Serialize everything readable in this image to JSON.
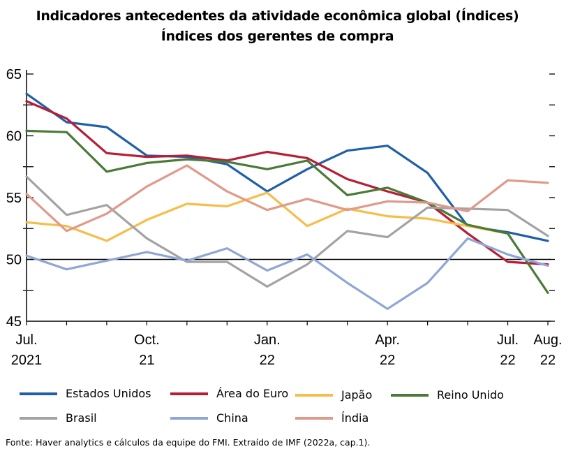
{
  "title": "Indicadores antecedentes da atividade econômica global (Índices)",
  "subtitle": "Índices dos gerentes de compra",
  "source": "Fonte: Haver analytics e cálculos da equipe do FMI.  Extraído de IMF (2022a, cap.1).",
  "chart_data": {
    "type": "line",
    "title": "Indicadores antecedentes da atividade econômica global (Índices)",
    "subtitle": "Índices dos gerentes de compra",
    "xlabel": "",
    "ylabel": "",
    "ylim": [
      45,
      65
    ],
    "yticks": [
      45,
      50,
      55,
      60,
      65
    ],
    "reference_line": 50,
    "grid": false,
    "legend_position": "bottom",
    "x": [
      "Jul 2021",
      "Aug 2021",
      "Sep 2021",
      "Oct 2021",
      "Nov 2021",
      "Dec 2021",
      "Jan 2022",
      "Feb 2022",
      "Mar 2022",
      "Apr 2022",
      "May 2022",
      "Jun 2022",
      "Jul 2022",
      "Aug 2022"
    ],
    "xtick_labels": [
      {
        "index": 0,
        "line1": "Jul.",
        "line2": "2021"
      },
      {
        "index": 3,
        "line1": "Oct.",
        "line2": "21"
      },
      {
        "index": 6,
        "line1": "Jan.",
        "line2": "22"
      },
      {
        "index": 9,
        "line1": "Apr.",
        "line2": "22"
      },
      {
        "index": 12,
        "line1": "Jul.",
        "line2": "22"
      },
      {
        "index": 13,
        "line1": "Aug.",
        "line2": "22"
      }
    ],
    "series": [
      {
        "name": "Estados Unidos",
        "color": "#1f5fa8",
        "values": [
          63.4,
          61.1,
          60.7,
          58.4,
          58.3,
          57.7,
          55.5,
          57.3,
          58.8,
          59.2,
          57.0,
          52.7,
          52.2,
          51.5
        ]
      },
      {
        "name": "Área do Euro",
        "color": "#b51e36",
        "values": [
          62.8,
          61.4,
          58.6,
          58.3,
          58.4,
          58.0,
          58.7,
          58.2,
          56.5,
          55.5,
          54.6,
          52.1,
          49.8,
          49.6
        ]
      },
      {
        "name": "Japão",
        "color": "#f7bd4a",
        "values": [
          53.0,
          52.7,
          51.5,
          53.2,
          54.5,
          54.3,
          55.4,
          52.7,
          54.1,
          53.5,
          53.3,
          52.7,
          52.1,
          null
        ]
      },
      {
        "name": "Reino Unido",
        "color": "#4a7a37",
        "values": [
          60.4,
          60.3,
          57.1,
          57.8,
          58.1,
          57.9,
          57.3,
          58.0,
          55.2,
          55.8,
          54.6,
          52.8,
          52.1,
          47.3
        ]
      },
      {
        "name": "Brasil",
        "color": "#a3a3a3",
        "values": [
          56.7,
          53.6,
          54.4,
          51.7,
          49.8,
          49.8,
          47.8,
          49.6,
          52.3,
          51.8,
          54.2,
          54.1,
          54.0,
          51.9
        ]
      },
      {
        "name": "China",
        "color": "#8fa6d6",
        "values": [
          50.3,
          49.2,
          49.9,
          50.6,
          49.9,
          50.9,
          49.1,
          50.4,
          48.1,
          46.0,
          48.1,
          51.7,
          50.4,
          49.5
        ]
      },
      {
        "name": "Índia",
        "color": "#e09a8a",
        "values": [
          55.3,
          52.3,
          53.7,
          55.9,
          57.6,
          55.5,
          54.0,
          54.9,
          54.0,
          54.7,
          54.6,
          53.9,
          56.4,
          56.2
        ]
      }
    ]
  }
}
